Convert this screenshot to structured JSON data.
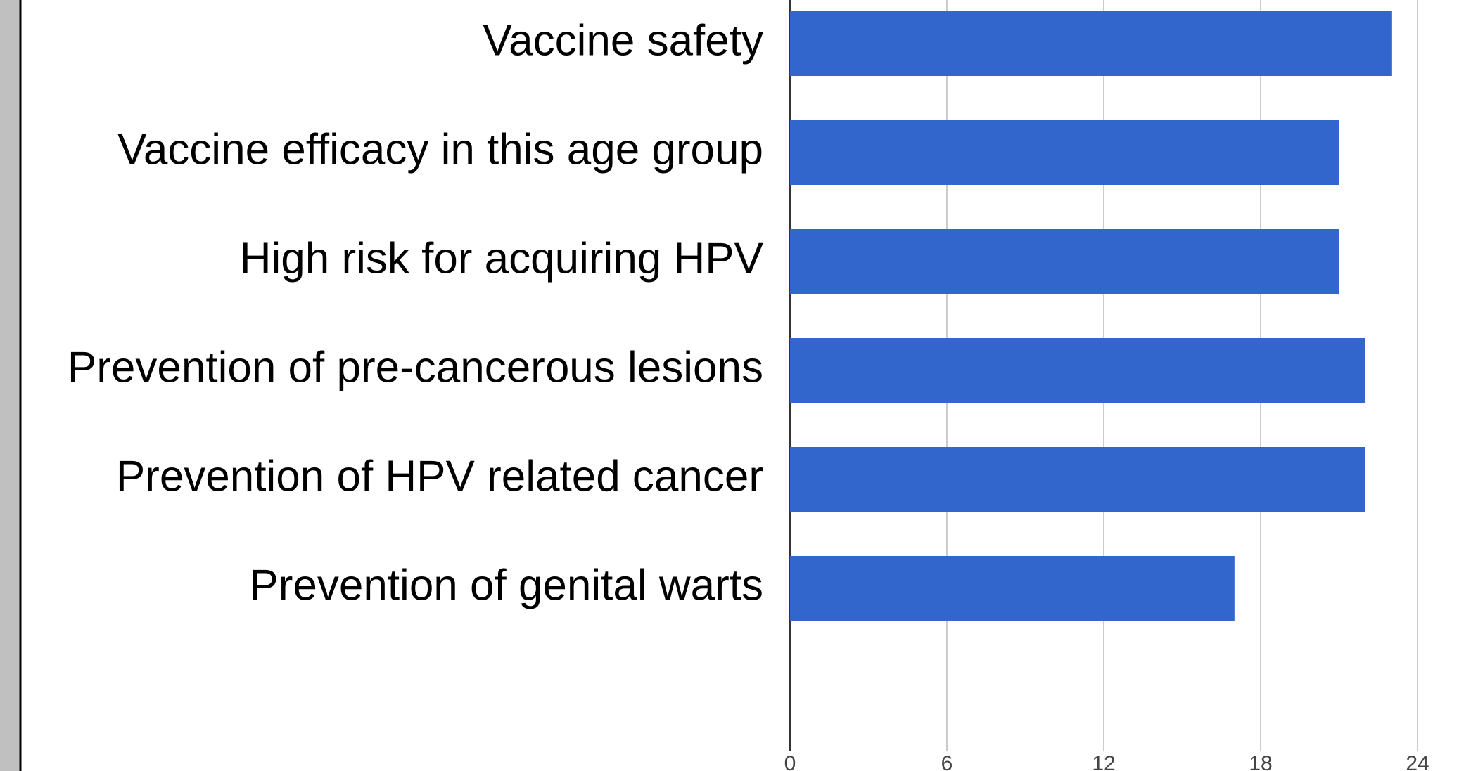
{
  "chart_data": {
    "type": "bar",
    "orientation": "horizontal",
    "categories": [
      "Vaccine safety",
      "Vaccine efficacy in this age group",
      "High risk for acquiring HPV",
      "Prevention of pre-cancerous lesions",
      "Prevention of HPV related cancer",
      "Prevention of genital warts"
    ],
    "values": [
      23,
      21,
      21,
      22,
      22,
      17
    ],
    "color": "#3366cc",
    "xlim": [
      0,
      24
    ],
    "xticks": [
      0,
      6,
      12,
      18,
      24
    ],
    "grid": true
  }
}
